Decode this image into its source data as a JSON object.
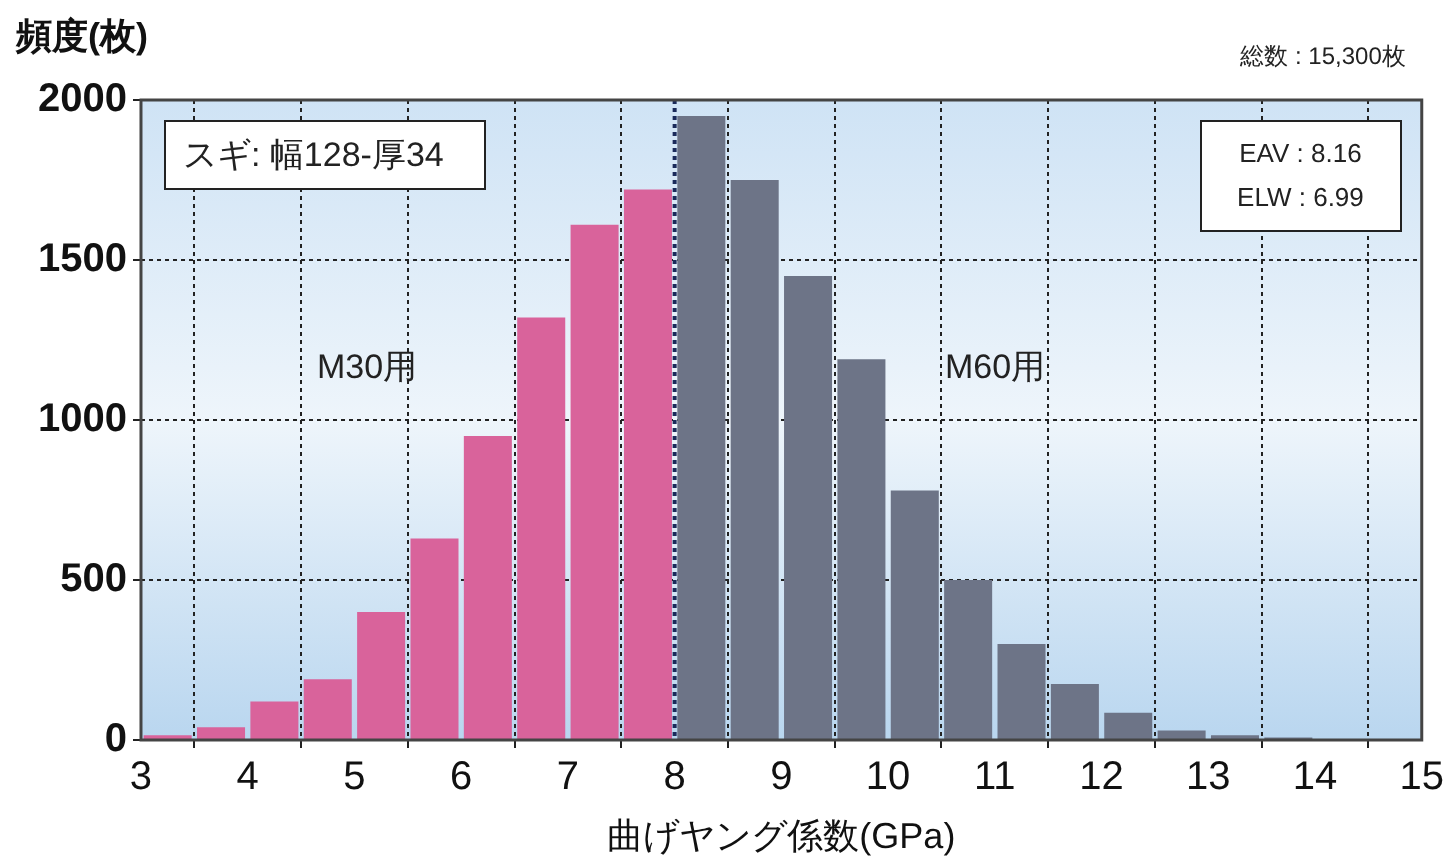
{
  "chart_data": {
    "type": "histogram",
    "ylabel": "頻度(枚)",
    "xlabel": "曲げヤング係数(GPa)",
    "bins": [
      3,
      3.5,
      4,
      4.5,
      5,
      5.5,
      6,
      6.5,
      7,
      7.5,
      8,
      8.5,
      9,
      9.5,
      10,
      10.5,
      11,
      11.5,
      12,
      12.5,
      13,
      13.5,
      14,
      14.5,
      15
    ],
    "values": [
      15,
      40,
      120,
      190,
      400,
      630,
      950,
      1320,
      1610,
      1720,
      1950,
      1750,
      1450,
      1190,
      780,
      500,
      300,
      175,
      85,
      30,
      15,
      8,
      0,
      0
    ],
    "colors": [
      "#d9639b",
      "#d9639b",
      "#d9639b",
      "#d9639b",
      "#d9639b",
      "#d9639b",
      "#d9639b",
      "#d9639b",
      "#d9639b",
      "#d9639b",
      "#6d7487",
      "#6d7487",
      "#6d7487",
      "#6d7487",
      "#6d7487",
      "#6d7487",
      "#6d7487",
      "#6d7487",
      "#6d7487",
      "#6d7487",
      "#6d7487",
      "#6d7487",
      "#6d7487",
      "#6d7487"
    ],
    "xlim": [
      3,
      15
    ],
    "xticks": [
      3,
      4,
      5,
      6,
      7,
      8,
      9,
      10,
      11,
      12,
      13,
      14,
      15
    ],
    "ylim": [
      0,
      2000
    ],
    "yticks": [
      0,
      500,
      1000,
      1500,
      2000
    ],
    "grid": true,
    "legend": false,
    "ref_lines": [
      {
        "axis": "x",
        "value": 8,
        "color": "#1a2a5a",
        "line_style": "dotted"
      }
    ],
    "annotations": [
      "スギ: 幅128-厚34",
      "M30用",
      "M60用",
      "EAV : 8.16",
      "ELW : 6.99",
      "総数 : 15,300枚"
    ]
  }
}
